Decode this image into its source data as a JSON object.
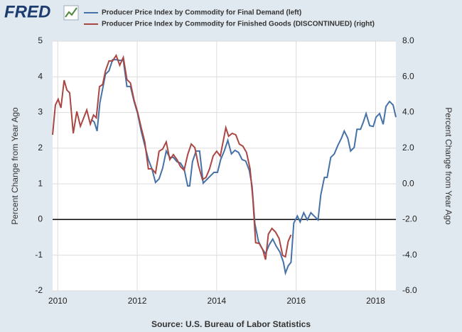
{
  "logo": "FRED",
  "chart_data": {
    "type": "line",
    "ylabel": "Percent Change from Year Ago",
    "y2label": "Percent Change from Year Ago",
    "source": "Source: U.S. Bureau of Labor Statistics",
    "xlim": [
      2009.87,
      2018.51
    ],
    "xticks": [
      2010,
      2012,
      2014,
      2016,
      2018
    ],
    "ylim": [
      -2,
      5
    ],
    "yticks": [
      -2,
      -1,
      0,
      1,
      2,
      3,
      4,
      5
    ],
    "y2lim": [
      -6,
      8
    ],
    "y2ticks": [
      {
        "value": -6,
        "label": "-6.0"
      },
      {
        "value": -4,
        "label": "-4.0"
      },
      {
        "value": -2,
        "label": "-2.0"
      },
      {
        "value": 0,
        "label": "0.0"
      },
      {
        "value": 2,
        "label": "2.0"
      },
      {
        "value": 4,
        "label": "4.0"
      },
      {
        "value": 6,
        "label": "6.0"
      },
      {
        "value": 8,
        "label": "8.0"
      }
    ],
    "grid": true,
    "series": [
      {
        "name": "Producer Price Index by Commodity for Final Demand (left)",
        "color": "#4572a7",
        "x": [
          2010.84,
          2010.92,
          2010.99,
          2011.06,
          2011.13,
          2011.2,
          2011.29,
          2011.38,
          2011.47,
          2011.56,
          2011.65,
          2011.74,
          2011.83,
          2011.92,
          2012.01,
          2012.1,
          2012.19,
          2012.28,
          2012.37,
          2012.46,
          2012.55,
          2012.64,
          2012.73,
          2012.82,
          2012.91,
          2013.0,
          2013.09,
          2013.18,
          2013.27,
          2013.32,
          2013.39,
          2013.48,
          2013.57,
          2013.66,
          2013.75,
          2013.84,
          2013.93,
          2014.02,
          2014.1,
          2014.19,
          2014.28,
          2014.37,
          2014.46,
          2014.55,
          2014.64,
          2014.73,
          2014.82,
          2014.89,
          2014.96,
          2015.05,
          2015.14,
          2015.23,
          2015.32,
          2015.41,
          2015.5,
          2015.59,
          2015.68,
          2015.73,
          2015.8,
          2015.87,
          2015.94,
          2016.03,
          2016.1,
          2016.19,
          2016.28,
          2016.37,
          2016.46,
          2016.55,
          2016.62,
          2016.71,
          2016.78,
          2016.87,
          2016.96,
          2017.05,
          2017.14,
          2017.21,
          2017.3,
          2017.37,
          2017.46,
          2017.53,
          2017.62,
          2017.69,
          2017.76,
          2017.85,
          2017.94,
          2018.01,
          2018.1,
          2018.19,
          2018.26,
          2018.35,
          2018.44,
          2018.51
        ],
        "values": [
          2.81,
          2.73,
          2.48,
          3.27,
          3.67,
          4.07,
          4.17,
          4.48,
          4.48,
          4.46,
          4.46,
          3.73,
          3.73,
          3.31,
          2.97,
          2.48,
          2.08,
          1.68,
          1.42,
          1.04,
          1.14,
          1.44,
          1.92,
          1.74,
          1.74,
          1.62,
          1.58,
          1.42,
          0.94,
          0.94,
          1.62,
          1.92,
          1.92,
          1.02,
          1.12,
          1.22,
          1.32,
          1.32,
          1.68,
          1.92,
          2.22,
          1.84,
          1.94,
          1.88,
          1.68,
          1.64,
          1.38,
          0.94,
          -0.11,
          -0.61,
          -0.81,
          -0.96,
          -0.71,
          -0.55,
          -0.75,
          -0.91,
          -1.2,
          -1.5,
          -1.3,
          -1.2,
          -0.1,
          0.1,
          -0.07,
          0.19,
          -0.01,
          0.19,
          0.09,
          -0.01,
          0.69,
          1.18,
          1.18,
          1.74,
          1.84,
          2.08,
          2.28,
          2.48,
          2.28,
          1.92,
          2.02,
          2.53,
          2.53,
          2.73,
          2.97,
          2.63,
          2.61,
          2.87,
          2.97,
          2.67,
          3.17,
          3.31,
          3.21,
          2.87
        ]
      },
      {
        "name": "Producer Price Index by Commodity for Finished Goods (DISCONTINUED) (right)",
        "color": "#aa4643",
        "axis": "y2",
        "x": [
          2009.87,
          2009.94,
          2010.01,
          2010.08,
          2010.16,
          2010.23,
          2010.3,
          2010.39,
          2010.48,
          2010.57,
          2010.66,
          2010.73,
          2010.82,
          2010.9,
          2010.97,
          2011.05,
          2011.13,
          2011.2,
          2011.29,
          2011.38,
          2011.47,
          2011.56,
          2011.65,
          2011.74,
          2011.83,
          2011.92,
          2012.01,
          2012.1,
          2012.19,
          2012.28,
          2012.37,
          2012.46,
          2012.55,
          2012.64,
          2012.73,
          2012.82,
          2012.91,
          2013.0,
          2013.09,
          2013.18,
          2013.27,
          2013.36,
          2013.45,
          2013.54,
          2013.64,
          2013.73,
          2013.82,
          2013.91,
          2014.0,
          2014.09,
          2014.16,
          2014.23,
          2014.3,
          2014.39,
          2014.48,
          2014.57,
          2014.66,
          2014.75,
          2014.84,
          2014.91,
          2014.98,
          2015.07,
          2015.16,
          2015.23,
          2015.3,
          2015.39,
          2015.48,
          2015.57,
          2015.66,
          2015.73,
          2015.8,
          2015.87
        ],
        "values": [
          2.75,
          4.42,
          4.74,
          4.26,
          5.81,
          5.26,
          5.1,
          2.83,
          4.06,
          3.23,
          3.74,
          4.14,
          3.35,
          3.86,
          3.7,
          5.45,
          5.57,
          6.33,
          6.89,
          6.89,
          7.2,
          6.65,
          7.09,
          5.85,
          5.65,
          4.7,
          4.02,
          3.15,
          2.35,
          0.84,
          0.84,
          0.6,
          1.83,
          1.95,
          2.35,
          1.36,
          1.64,
          1.36,
          0.96,
          0.76,
          1.64,
          2.23,
          2.03,
          1.04,
          0.24,
          0.36,
          0.84,
          1.56,
          1.83,
          1.56,
          2.35,
          3.15,
          2.67,
          2.83,
          2.75,
          2.23,
          2.11,
          1.76,
          0.84,
          -0.83,
          -3.3,
          -3.34,
          -3.7,
          -4.25,
          -2.82,
          -2.5,
          -2.7,
          -3.06,
          -4.01,
          -4.09,
          -3.22,
          -2.86
        ]
      }
    ]
  }
}
